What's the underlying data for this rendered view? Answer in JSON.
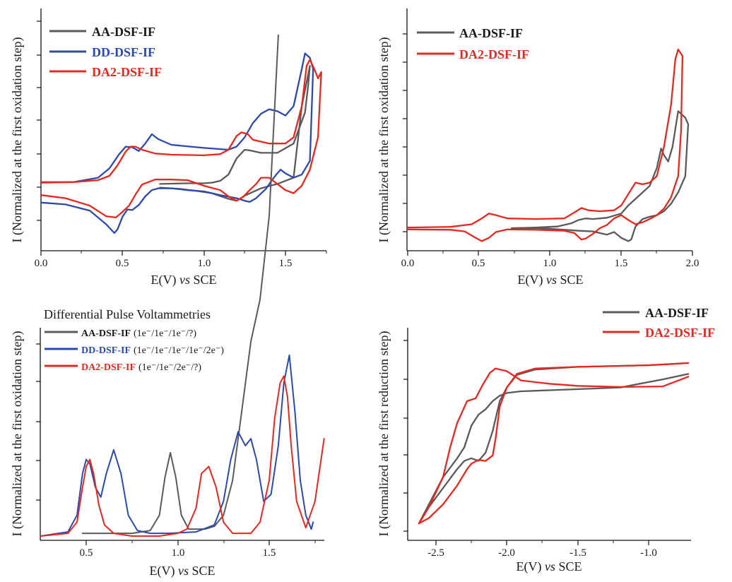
{
  "colors": {
    "AA": "#5a5a5a",
    "DD": "#2c49ad",
    "DA2": "#e8271f"
  },
  "chart_data": [
    {
      "type": "line",
      "xlabel": "E(V) vs SCE",
      "ylabel": "I (Normalized at the first oxidation step)",
      "xlim": [
        0.0,
        1.75
      ],
      "xticks": [
        "0.0",
        "0.5",
        "1.0",
        "1.5"
      ],
      "grid": false,
      "legend_position": "top-left",
      "series": [
        {
          "name": "AA-DSF-IF",
          "color_key": "AA",
          "x": [
            0.73,
            0.9,
            1.0,
            1.05,
            1.1,
            1.15,
            1.2,
            1.25,
            1.28,
            1.35,
            1.45,
            1.55,
            1.62,
            1.64,
            1.65,
            1.6,
            1.55,
            1.45,
            1.35,
            1.25,
            1.2,
            1.15,
            1.05,
            0.95,
            0.85,
            0.73
          ],
          "y": [
            0.45,
            0.46,
            0.46,
            0.47,
            0.5,
            0.6,
            0.86,
            1.0,
            0.99,
            0.95,
            0.95,
            1.1,
            1.6,
            2.05,
            2.35,
            1.7,
            0.55,
            0.45,
            0.38,
            0.26,
            0.18,
            0.21,
            0.3,
            0.34,
            0.37,
            0.39
          ]
        },
        {
          "name": "DD-DSF-IF",
          "color_key": "DD",
          "x": [
            0.0,
            0.2,
            0.35,
            0.42,
            0.48,
            0.52,
            0.56,
            0.6,
            0.64,
            0.68,
            0.72,
            0.8,
            1.0,
            1.15,
            1.2,
            1.25,
            1.3,
            1.35,
            1.4,
            1.45,
            1.5,
            1.55,
            1.6,
            1.62,
            1.65,
            1.67,
            1.65,
            1.6,
            1.55,
            1.5,
            1.47,
            1.45,
            1.42,
            1.38,
            1.32,
            1.28,
            1.25,
            1.2,
            1.1,
            1.0,
            0.9,
            0.8,
            0.72,
            0.68,
            0.64,
            0.6,
            0.56,
            0.53,
            0.5,
            0.47,
            0.45,
            0.4,
            0.3,
            0.15,
            0.0
          ],
          "y": [
            0.47,
            0.48,
            0.55,
            0.7,
            0.93,
            1.05,
            1.04,
            0.98,
            1.1,
            1.25,
            1.17,
            1.08,
            1.03,
            1.0,
            1.05,
            1.2,
            1.43,
            1.58,
            1.65,
            1.62,
            1.55,
            1.7,
            2.3,
            2.55,
            2.48,
            2.3,
            0.82,
            0.6,
            0.55,
            0.62,
            0.68,
            0.62,
            0.52,
            0.37,
            0.22,
            0.16,
            0.18,
            0.22,
            0.27,
            0.33,
            0.35,
            0.38,
            0.38,
            0.35,
            0.25,
            0.11,
            0.03,
            0.04,
            -0.08,
            -0.28,
            -0.34,
            -0.2,
            0.02,
            0.12,
            0.15
          ]
        },
        {
          "name": "DA2-DSF-IF",
          "color_key": "DA2",
          "x": [
            0.0,
            0.2,
            0.35,
            0.42,
            0.47,
            0.52,
            0.55,
            0.58,
            0.62,
            0.7,
            0.8,
            1.0,
            1.1,
            1.15,
            1.2,
            1.23,
            1.27,
            1.3,
            1.4,
            1.5,
            1.55,
            1.6,
            1.63,
            1.65,
            1.68,
            1.7,
            1.72,
            1.7,
            1.65,
            1.6,
            1.55,
            1.5,
            1.45,
            1.4,
            1.35,
            1.32,
            1.28,
            1.24,
            1.2,
            1.15,
            1.1,
            1.0,
            0.9,
            0.8,
            0.7,
            0.62,
            0.58,
            0.54,
            0.5,
            0.46,
            0.4,
            0.3,
            0.15,
            0.0
          ],
          "y": [
            0.48,
            0.48,
            0.51,
            0.58,
            0.75,
            0.97,
            1.05,
            1.05,
            1.0,
            0.94,
            0.92,
            0.91,
            0.93,
            1.0,
            1.22,
            1.28,
            1.25,
            1.16,
            1.1,
            1.1,
            1.2,
            1.7,
            2.35,
            2.45,
            2.28,
            2.15,
            2.25,
            1.2,
            0.68,
            0.42,
            0.3,
            0.35,
            0.45,
            0.55,
            0.55,
            0.45,
            0.35,
            0.24,
            0.18,
            0.25,
            0.35,
            0.42,
            0.51,
            0.52,
            0.52,
            0.44,
            0.28,
            0.1,
            0.0,
            -0.09,
            -0.07,
            0.1,
            0.22,
            0.27
          ]
        }
      ]
    },
    {
      "type": "line",
      "xlabel": "E(V) vs SCE",
      "ylabel": "I (Normalized at the first oxidation step)",
      "xlim": [
        0.0,
        2.0
      ],
      "xticks": [
        "0.0",
        "0.5",
        "1.0",
        "1.5",
        "2.0"
      ],
      "grid": false,
      "legend_position": "top-left",
      "series": [
        {
          "name": "AA-DSF-IF",
          "color_key": "AA",
          "x": [
            0.73,
            0.9,
            1.05,
            1.15,
            1.2,
            1.25,
            1.3,
            1.4,
            1.5,
            1.55,
            1.6,
            1.65,
            1.7,
            1.75,
            1.78,
            1.8,
            1.83,
            1.86,
            1.9,
            1.95,
            1.97,
            1.95,
            1.9,
            1.85,
            1.8,
            1.75,
            1.7,
            1.65,
            1.6,
            1.57,
            1.55,
            1.5,
            1.45,
            1.4,
            1.3,
            1.2,
            1.0,
            0.9,
            0.73
          ],
          "y": [
            0.0,
            0.02,
            0.05,
            0.15,
            0.25,
            0.3,
            0.28,
            0.32,
            0.45,
            0.7,
            0.9,
            1.1,
            1.3,
            1.85,
            2.45,
            2.25,
            2.05,
            2.5,
            3.6,
            3.4,
            3.2,
            1.6,
            1.1,
            0.75,
            0.52,
            0.4,
            0.35,
            0.28,
            0.05,
            -0.35,
            -0.4,
            -0.3,
            -0.12,
            -0.2,
            -0.1,
            -0.08,
            -0.02,
            0.0,
            0.0
          ]
        },
        {
          "name": "DA2-DSF-IF",
          "color_key": "DA2",
          "x": [
            0.0,
            0.3,
            0.45,
            0.52,
            0.57,
            0.62,
            0.7,
            0.9,
            1.1,
            1.17,
            1.22,
            1.27,
            1.35,
            1.45,
            1.5,
            1.55,
            1.6,
            1.65,
            1.7,
            1.75,
            1.8,
            1.85,
            1.88,
            1.9,
            1.93,
            1.92,
            1.9,
            1.85,
            1.8,
            1.75,
            1.7,
            1.65,
            1.6,
            1.55,
            1.5,
            1.45,
            1.4,
            1.35,
            1.3,
            1.25,
            1.22,
            1.17,
            1.1,
            0.9,
            0.7,
            0.62,
            0.57,
            0.52,
            0.47,
            0.4,
            0.3,
            0.0
          ],
          "y": [
            0.02,
            0.04,
            0.12,
            0.3,
            0.45,
            0.4,
            0.3,
            0.28,
            0.3,
            0.48,
            0.62,
            0.55,
            0.52,
            0.55,
            0.7,
            1.05,
            1.4,
            1.35,
            1.4,
            1.6,
            2.5,
            3.8,
            5.2,
            5.5,
            5.3,
            3.0,
            1.6,
            0.95,
            0.6,
            0.4,
            0.28,
            0.18,
            0.12,
            0.25,
            0.4,
            0.3,
            0.1,
            0.0,
            -0.18,
            -0.32,
            -0.35,
            -0.15,
            -0.08,
            -0.05,
            -0.04,
            -0.12,
            -0.3,
            -0.4,
            -0.28,
            -0.1,
            -0.05,
            -0.04
          ]
        }
      ]
    },
    {
      "type": "line",
      "title": "Differential Pulse Voltammetries",
      "xlabel": "E(V) vs SCE",
      "ylabel": "I (Normalized at the first oxidation step)",
      "xlim": [
        0.25,
        1.8
      ],
      "xticks": [
        "0.5",
        "1.0",
        "1.5"
      ],
      "grid": false,
      "legend_position": "top-left",
      "series": [
        {
          "name": "AA-DSF-IF",
          "annotation": "(1e⁻/1e⁻/1e⁻/?)",
          "color_key": "AA",
          "x": [
            0.48,
            0.6,
            0.75,
            0.85,
            0.9,
            0.93,
            0.96,
            0.99,
            1.02,
            1.06,
            1.1,
            1.15,
            1.2,
            1.25,
            1.3,
            1.35,
            1.4,
            1.45,
            1.5,
            1.55
          ],
          "y": [
            0.02,
            0.02,
            0.02,
            0.04,
            0.15,
            0.42,
            0.6,
            0.42,
            0.15,
            0.05,
            0.05,
            0.05,
            0.07,
            0.15,
            0.4,
            0.9,
            1.4,
            1.7,
            2.3,
            3.6
          ]
        },
        {
          "name": "DD-DSF-IF",
          "annotation": "(1e⁻/1e⁻/1e⁻/1e⁻/2e⁻)",
          "color_key": "DD",
          "x": [
            0.25,
            0.4,
            0.45,
            0.48,
            0.5,
            0.52,
            0.55,
            0.58,
            0.61,
            0.65,
            0.69,
            0.73,
            0.78,
            0.85,
            0.95,
            1.1,
            1.2,
            1.25,
            1.29,
            1.33,
            1.37,
            1.4,
            1.43,
            1.47,
            1.51,
            1.55,
            1.58,
            1.61,
            1.64,
            1.67,
            1.7,
            1.73,
            1.74
          ],
          "y": [
            0.0,
            0.03,
            0.15,
            0.45,
            0.55,
            0.52,
            0.35,
            0.28,
            0.45,
            0.62,
            0.45,
            0.15,
            0.04,
            0.02,
            0.02,
            0.03,
            0.08,
            0.25,
            0.55,
            0.75,
            0.65,
            0.7,
            0.55,
            0.25,
            0.3,
            0.65,
            1.1,
            1.3,
            0.9,
            0.4,
            0.15,
            0.05,
            0.1
          ]
        },
        {
          "name": "DA2-DSF-IF",
          "annotation": "(1e⁻/1e⁻/2e⁻/?)",
          "color_key": "DA2",
          "x": [
            0.25,
            0.4,
            0.45,
            0.48,
            0.5,
            0.52,
            0.54,
            0.57,
            0.6,
            0.65,
            0.75,
            0.9,
            1.0,
            1.05,
            1.1,
            1.13,
            1.17,
            1.21,
            1.25,
            1.3,
            1.4,
            1.45,
            1.5,
            1.53,
            1.56,
            1.58,
            1.6,
            1.62,
            1.65,
            1.7,
            1.75,
            1.8
          ],
          "y": [
            0.0,
            0.02,
            0.1,
            0.35,
            0.5,
            0.55,
            0.45,
            0.22,
            0.08,
            0.02,
            0.0,
            0.0,
            0.02,
            0.05,
            0.2,
            0.45,
            0.5,
            0.35,
            0.1,
            0.02,
            0.02,
            0.1,
            0.4,
            0.85,
            1.1,
            1.15,
            1.0,
            0.65,
            0.25,
            0.06,
            0.25,
            0.7
          ]
        }
      ]
    },
    {
      "type": "line",
      "xlabel": "E(V) vs SCE",
      "ylabel": "I (Normalized at the first reduction step)",
      "xlim": [
        -2.65,
        -0.65
      ],
      "xticks": [
        "-2.5",
        "-2.0",
        "-1.5",
        "-1.0"
      ],
      "grid": false,
      "legend_position": "top-right",
      "series": [
        {
          "name": "AA-DSF-IF",
          "color_key": "AA",
          "x": [
            -0.72,
            -1.0,
            -1.5,
            -1.8,
            -1.93,
            -2.0,
            -2.05,
            -2.1,
            -2.15,
            -2.2,
            -2.25,
            -2.3,
            -2.35,
            -2.45,
            -2.55,
            -2.62,
            -2.55,
            -2.45,
            -2.35,
            -2.3,
            -2.25,
            -2.2,
            -2.15,
            -2.1,
            -2.05,
            -2.0,
            -1.9,
            -1.7,
            -1.5,
            -1.2,
            -0.9,
            -0.72
          ],
          "y": [
            2.0,
            1.96,
            1.93,
            1.88,
            1.78,
            1.55,
            1.3,
            0.75,
            0.35,
            0.2,
            0.25,
            0.2,
            0.05,
            -0.3,
            -0.65,
            -0.95,
            -0.6,
            -0.1,
            0.25,
            0.45,
            0.85,
            1.05,
            1.15,
            1.3,
            1.4,
            1.45,
            1.48,
            1.5,
            1.52,
            1.55,
            1.7,
            1.8
          ]
        },
        {
          "name": "DA2-DSF-IF",
          "color_key": "DA2",
          "x": [
            -0.72,
            -1.0,
            -1.5,
            -1.8,
            -1.93,
            -2.0,
            -2.05,
            -2.08,
            -2.1,
            -2.15,
            -2.2,
            -2.25,
            -2.28,
            -2.35,
            -2.45,
            -2.55,
            -2.62,
            -2.55,
            -2.45,
            -2.4,
            -2.35,
            -2.28,
            -2.22,
            -2.17,
            -2.12,
            -2.08,
            -2.0,
            -1.9,
            -1.7,
            -1.5,
            -1.2,
            -0.9,
            -0.72
          ],
          "y": [
            2.0,
            1.96,
            1.93,
            1.9,
            1.8,
            1.55,
            1.2,
            0.6,
            0.3,
            0.2,
            0.22,
            0.15,
            0.05,
            -0.25,
            -0.6,
            -0.85,
            -0.95,
            -0.65,
            -0.1,
            0.45,
            0.9,
            1.3,
            1.35,
            1.6,
            1.82,
            1.9,
            1.85,
            1.68,
            1.62,
            1.58,
            1.56,
            1.57,
            1.75
          ]
        }
      ]
    }
  ]
}
